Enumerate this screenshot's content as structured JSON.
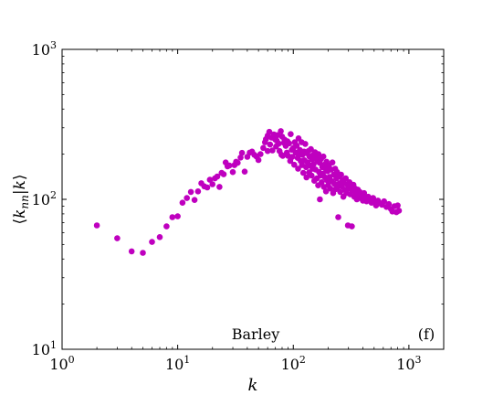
{
  "chart_data": {
    "type": "scatter",
    "title": "",
    "xlabel": "k",
    "ylabel_parts": [
      "⟨",
      "k",
      "nn",
      "|",
      "k",
      "⟩"
    ],
    "x_scale": "log",
    "y_scale": "log",
    "xlim": [
      1,
      2000
    ],
    "ylim": [
      10,
      1000
    ],
    "grid": false,
    "x_ticks": [
      {
        "value": 1,
        "base": "10",
        "exp": "0"
      },
      {
        "value": 10,
        "base": "10",
        "exp": "1"
      },
      {
        "value": 100,
        "base": "10",
        "exp": "2"
      },
      {
        "value": 1000,
        "base": "10",
        "exp": "3"
      }
    ],
    "y_ticks": [
      {
        "value": 10,
        "base": "10",
        "exp": "1"
      },
      {
        "value": 100,
        "base": "10",
        "exp": "2"
      },
      {
        "value": 1000,
        "base": "10",
        "exp": "3"
      }
    ],
    "annotations": {
      "dataset": "Barley",
      "panel": "(f)"
    },
    "marker_color": "#bf00bf",
    "series": [
      {
        "points": [
          [
            2,
            67
          ],
          [
            3,
            55
          ],
          [
            4,
            45
          ],
          [
            5,
            44
          ],
          [
            6,
            52
          ],
          [
            7,
            56
          ],
          [
            8,
            66
          ],
          [
            9,
            76
          ],
          [
            10,
            77
          ],
          [
            11,
            95
          ],
          [
            12,
            102
          ],
          [
            13,
            112
          ],
          [
            14,
            99
          ],
          [
            15,
            113
          ],
          [
            16,
            128
          ],
          [
            17,
            122
          ],
          [
            18,
            120
          ],
          [
            19,
            135
          ],
          [
            20,
            126
          ],
          [
            21,
            138
          ],
          [
            22,
            142
          ],
          [
            23,
            121
          ],
          [
            24,
            150
          ],
          [
            25,
            147
          ],
          [
            26,
            176
          ],
          [
            27,
            166
          ],
          [
            28,
            168
          ],
          [
            30,
            152
          ],
          [
            31,
            169
          ],
          [
            32,
            178
          ],
          [
            33,
            175
          ],
          [
            35,
            190
          ],
          [
            36,
            204
          ],
          [
            38,
            153
          ],
          [
            40,
            192
          ],
          [
            42,
            205
          ],
          [
            44,
            208
          ],
          [
            46,
            198
          ],
          [
            48,
            193
          ],
          [
            50,
            183
          ],
          [
            52,
            200
          ],
          [
            55,
            220
          ],
          [
            57,
            240
          ],
          [
            58,
            252
          ],
          [
            60,
            210
          ],
          [
            60,
            266
          ],
          [
            62,
            282
          ],
          [
            63,
            232
          ],
          [
            65,
            258
          ],
          [
            66,
            212
          ],
          [
            68,
            271
          ],
          [
            70,
            250
          ],
          [
            71,
            225
          ],
          [
            72,
            246
          ],
          [
            73,
            268
          ],
          [
            75,
            235
          ],
          [
            76,
            210
          ],
          [
            78,
            285
          ],
          [
            79,
            198
          ],
          [
            80,
            262
          ],
          [
            81,
            195
          ],
          [
            83,
            238
          ],
          [
            84,
            250
          ],
          [
            86,
            227
          ],
          [
            88,
            205
          ],
          [
            89,
            244
          ],
          [
            90,
            195
          ],
          [
            92,
            236
          ],
          [
            94,
            180
          ],
          [
            95,
            272
          ],
          [
            97,
            214
          ],
          [
            98,
            192
          ],
          [
            100,
            220
          ],
          [
            102,
            170
          ],
          [
            103,
            240
          ],
          [
            105,
            205
          ],
          [
            107,
            228
          ],
          [
            109,
            189
          ],
          [
            110,
            160
          ],
          [
            111,
            255
          ],
          [
            112,
            200
          ],
          [
            114,
            213
          ],
          [
            116,
            180
          ],
          [
            118,
            240
          ],
          [
            119,
            169
          ],
          [
            120,
            198
          ],
          [
            122,
            150
          ],
          [
            124,
            208
          ],
          [
            125,
            182
          ],
          [
            127,
            234
          ],
          [
            129,
            164
          ],
          [
            130,
            140
          ],
          [
            131,
            203
          ],
          [
            133,
            176
          ],
          [
            135,
            210
          ],
          [
            137,
            151
          ],
          [
            138,
            193
          ],
          [
            140,
            168
          ],
          [
            142,
            216
          ],
          [
            144,
            144
          ],
          [
            145,
            185
          ],
          [
            147,
            160
          ],
          [
            149,
            198
          ],
          [
            150,
            172
          ],
          [
            152,
            133
          ],
          [
            154,
            206
          ],
          [
            156,
            158
          ],
          [
            158,
            188
          ],
          [
            160,
            138
          ],
          [
            162,
            180
          ],
          [
            164,
            124
          ],
          [
            165,
            200
          ],
          [
            167,
            152
          ],
          [
            169,
            175
          ],
          [
            170,
            100
          ],
          [
            172,
            144
          ],
          [
            174,
            186
          ],
          [
            176,
            130
          ],
          [
            178,
            164
          ],
          [
            180,
            148
          ],
          [
            182,
            193
          ],
          [
            184,
            121
          ],
          [
            186,
            170
          ],
          [
            188,
            140
          ],
          [
            190,
            160
          ],
          [
            192,
            113
          ],
          [
            194,
            178
          ],
          [
            196,
            134
          ],
          [
            198,
            154
          ],
          [
            200,
            124
          ],
          [
            203,
            168
          ],
          [
            206,
            141
          ],
          [
            209,
            118
          ],
          [
            212,
            158
          ],
          [
            215,
            132
          ],
          [
            218,
            176
          ],
          [
            221,
            110
          ],
          [
            224,
            146
          ],
          [
            227,
            127
          ],
          [
            230,
            160
          ],
          [
            233,
            117
          ],
          [
            236,
            138
          ],
          [
            239,
            152
          ],
          [
            242,
            121
          ],
          [
            245,
            76
          ],
          [
            248,
            142
          ],
          [
            251,
            128
          ],
          [
            255,
            112
          ],
          [
            259,
            146
          ],
          [
            263,
            122
          ],
          [
            267,
            134
          ],
          [
            271,
            104
          ],
          [
            275,
            128
          ],
          [
            280,
            116
          ],
          [
            284,
            138
          ],
          [
            288,
            110
          ],
          [
            293,
            126
          ],
          [
            297,
            67
          ],
          [
            301,
            118
          ],
          [
            306,
            130
          ],
          [
            311,
            108
          ],
          [
            316,
            120
          ],
          [
            321,
            66
          ],
          [
            326,
            114
          ],
          [
            331,
            125
          ],
          [
            337,
            104
          ],
          [
            343,
            118
          ],
          [
            349,
            110
          ],
          [
            355,
            100
          ],
          [
            362,
            116
          ],
          [
            369,
            106
          ],
          [
            376,
            112
          ],
          [
            384,
            102
          ],
          [
            392,
            108
          ],
          [
            400,
            98
          ],
          [
            410,
            110
          ],
          [
            420,
            103
          ],
          [
            430,
            97
          ],
          [
            445,
            104
          ],
          [
            460,
            100
          ],
          [
            475,
            95
          ],
          [
            490,
            102
          ],
          [
            505,
            96
          ],
          [
            520,
            91
          ],
          [
            540,
            98
          ],
          [
            560,
            94
          ],
          [
            585,
            92
          ],
          [
            610,
            97
          ],
          [
            640,
            89
          ],
          [
            670,
            93
          ],
          [
            700,
            86
          ],
          [
            720,
            83
          ],
          [
            750,
            90
          ],
          [
            780,
            82
          ],
          [
            800,
            91
          ],
          [
            820,
            84
          ]
        ]
      }
    ]
  }
}
